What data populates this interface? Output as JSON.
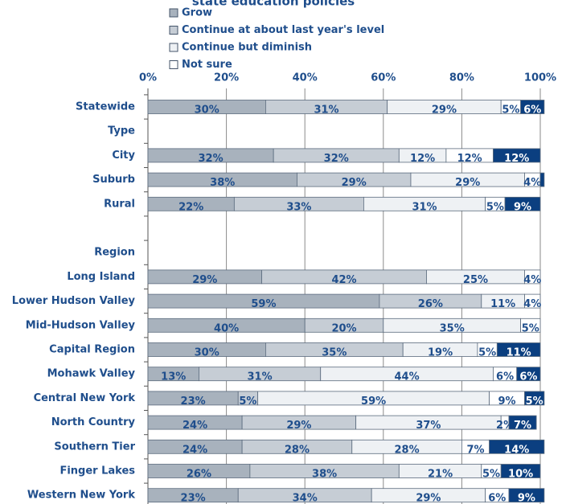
{
  "chart_data": {
    "type": "stacked-bar-horizontal",
    "title": "state education policies",
    "categories": [
      "Statewide",
      "Type",
      "City",
      "Suburb",
      "Rural",
      null,
      "Region",
      "Long Island",
      "Lower Hudson Valley",
      "Mid-Hudson Valley",
      "Capital Region",
      "Mohawk Valley",
      "Central New York",
      "North Country",
      "Southern Tier",
      "Finger Lakes",
      "Western New York"
    ],
    "series": [
      {
        "name": "Grow",
        "color": "#a8b2bd",
        "values": [
          30,
          null,
          32,
          38,
          22,
          null,
          null,
          29,
          59,
          40,
          30,
          13,
          23,
          24,
          24,
          26,
          23
        ],
        "value_labels": [
          "30%",
          null,
          "32%",
          "38%",
          "22%",
          null,
          null,
          "29%",
          "59%",
          "40%",
          "30%",
          "13%",
          "23%",
          "24%",
          "24%",
          "26%",
          "23%"
        ]
      },
      {
        "name": "Continue at about last year's level",
        "color": "#c6cdd5",
        "values": [
          31,
          null,
          32,
          29,
          33,
          null,
          null,
          42,
          26,
          20,
          35,
          31,
          5,
          29,
          28,
          38,
          34
        ],
        "value_labels": [
          "31%",
          null,
          "32%",
          "29%",
          "33%",
          null,
          null,
          "42%",
          "26%",
          "20%",
          "35%",
          "31%",
          "5%",
          "29%",
          "28%",
          "38%",
          "34%"
        ]
      },
      {
        "name": "Continue but diminish",
        "color": "#eef1f4",
        "values": [
          29,
          null,
          12,
          29,
          31,
          null,
          null,
          25,
          11,
          35,
          19,
          44,
          59,
          37,
          28,
          21,
          29
        ],
        "value_labels": [
          "29%",
          null,
          "12%",
          "29%",
          "31%",
          null,
          null,
          "25%",
          "11%",
          "35%",
          "19%",
          "44%",
          "59%",
          "37%",
          "28%",
          "21%",
          "29%"
        ]
      },
      {
        "name": "Not sure",
        "color": "#ffffff",
        "values": [
          5,
          null,
          12,
          4,
          5,
          null,
          null,
          4,
          4,
          5,
          5,
          6,
          9,
          2,
          7,
          5,
          6
        ],
        "value_labels": [
          "5%",
          null,
          "12%",
          "4%",
          "5%",
          null,
          null,
          "4%",
          "4%",
          "5%",
          "5%",
          "6%",
          "9%",
          "2%",
          "7%",
          "5%",
          "6%"
        ]
      },
      {
        "color": "#0b3f80",
        "values": [
          6,
          null,
          12,
          1,
          9,
          null,
          null,
          null,
          null,
          null,
          11,
          6,
          5,
          7,
          14,
          10,
          9
        ],
        "value_labels": [
          "6%",
          null,
          "12%",
          null,
          "9%",
          null,
          null,
          null,
          null,
          null,
          "11%",
          "6%",
          "5%",
          "7%",
          "14%",
          "10%",
          "9%"
        ]
      }
    ],
    "xlim": [
      0,
      100
    ],
    "xticks": [
      {
        "value": 0,
        "label": "0%"
      },
      {
        "value": 20,
        "label": "20%"
      },
      {
        "value": 40,
        "label": "40%"
      },
      {
        "value": 60,
        "label": "60%"
      },
      {
        "value": 80,
        "label": "80%"
      },
      {
        "value": 100,
        "label": "100%"
      }
    ],
    "grid": true
  }
}
